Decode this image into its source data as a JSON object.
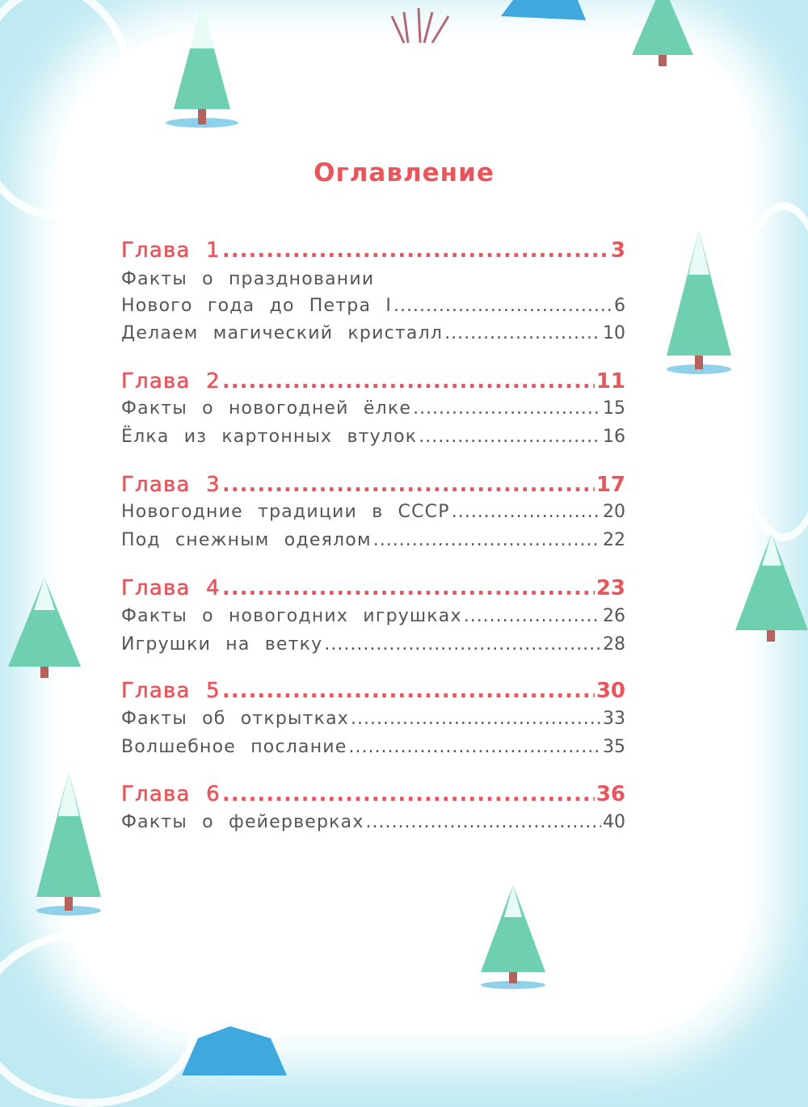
{
  "title": "Оглавление",
  "chapters": [
    {
      "label": "Глава 1",
      "page": "3",
      "items": [
        {
          "label": "Факты о праздновании",
          "page": ""
        },
        {
          "label": "Нового года до Петра I",
          "page": "6"
        },
        {
          "label": "Делаем магический кристалл",
          "page": "10"
        }
      ]
    },
    {
      "label": "Глава 2",
      "page": "11",
      "items": [
        {
          "label": "Факты о новогодней ёлке",
          "page": "15"
        },
        {
          "label": "Ёлка из картонных втулок",
          "page": "16"
        }
      ]
    },
    {
      "label": "Глава 3",
      "page": "17",
      "items": [
        {
          "label": "Новогодние традиции в СССР",
          "page": "20"
        },
        {
          "label": "Под снежным одеялом",
          "page": "22"
        }
      ]
    },
    {
      "label": "Глава 4",
      "page": "23",
      "items": [
        {
          "label": "Факты о новогодних игрушках",
          "page": "26"
        },
        {
          "label": "Игрушки на ветку",
          "page": "28"
        }
      ]
    },
    {
      "label": "Глава 5",
      "page": "30",
      "items": [
        {
          "label": "Факты об открытках",
          "page": "33"
        },
        {
          "label": "Волшебное послание",
          "page": "35"
        }
      ]
    },
    {
      "label": "Глава 6",
      "page": "36",
      "items": [
        {
          "label": "Факты о фейерверках",
          "page": "40"
        }
      ]
    }
  ],
  "colors": {
    "accent": "#e8565d",
    "text": "#555555",
    "background": "#bfeaf2"
  }
}
